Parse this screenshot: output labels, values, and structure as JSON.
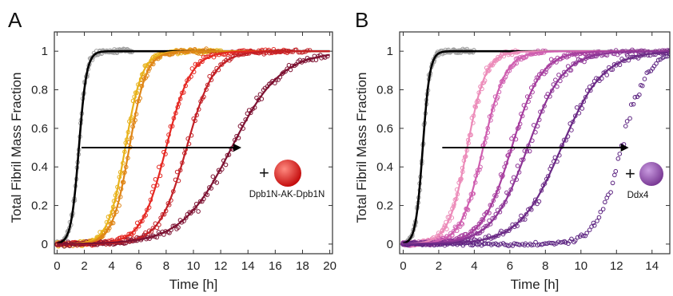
{
  "chart_data": [
    {
      "panel_label": "A",
      "type": "scatter",
      "xlabel": "Time [h]",
      "ylabel": "Total Fibril Mass Fraction",
      "xlim": [
        -0.2,
        20.2
      ],
      "ylim": [
        -0.05,
        1.1
      ],
      "xticks": [
        0,
        2,
        4,
        6,
        8,
        10,
        12,
        14,
        16,
        18,
        20
      ],
      "yticks": [
        0,
        0.2,
        0.4,
        0.6,
        0.8,
        1
      ],
      "annotation": "Dpb1N-AK-Dpb1N",
      "plus": "+",
      "bead_color": "#e0201b",
      "arrow": {
        "x1": 1.8,
        "x2": 13.4,
        "y": 0.5
      },
      "series": [
        {
          "color": "#000000",
          "t_half": 1.6,
          "k": 3.5,
          "x_start": 0.0,
          "x_end": 5.0,
          "fit_end": 20.0,
          "points": 0
        },
        {
          "color": "#9e9e9e",
          "t_half": 1.6,
          "k": 3.5,
          "x_start": 0.0,
          "x_end": 5.5,
          "fit_end": 0,
          "points": 110
        },
        {
          "color": "#e8b21a",
          "t_half": 5.0,
          "k": 1.6,
          "x_start": 0.0,
          "x_end": 12.0,
          "fit_end": 20.0,
          "points": 130
        },
        {
          "color": "#df8516",
          "t_half": 5.3,
          "k": 1.6,
          "x_start": 0.0,
          "x_end": 11.5,
          "fit_end": 20.0,
          "points": 130
        },
        {
          "color": "#e52822",
          "t_half": 8.0,
          "k": 1.1,
          "x_start": 0.0,
          "x_end": 17.0,
          "fit_end": 20.0,
          "points": 140
        },
        {
          "color": "#c22026",
          "t_half": 9.5,
          "k": 1.0,
          "x_start": 0.0,
          "x_end": 18.5,
          "fit_end": 20.0,
          "points": 140
        },
        {
          "color": "#7d1232",
          "t_half": 12.8,
          "k": 0.55,
          "x_start": 0.0,
          "x_end": 19.8,
          "fit_end": 20.0,
          "points": 150
        }
      ]
    },
    {
      "panel_label": "B",
      "type": "scatter",
      "xlabel": "Time [h]",
      "ylabel": "Total Fibril Mass Fraction",
      "xlim": [
        -0.2,
        15.0
      ],
      "ylim": [
        -0.05,
        1.1
      ],
      "xticks": [
        0,
        2,
        4,
        6,
        8,
        10,
        12,
        14
      ],
      "yticks": [
        0,
        0.2,
        0.4,
        0.6,
        0.8,
        1
      ],
      "annotation": "Ddx4",
      "plus": "+",
      "bead_color": "#8e4ea6",
      "arrow": {
        "x1": 2.2,
        "x2": 12.6,
        "y": 0.5
      },
      "series": [
        {
          "color": "#000000",
          "t_half": 1.1,
          "k": 5.0,
          "x_start": 0.0,
          "x_end": 4.0,
          "fit_end": 15.0,
          "points": 0
        },
        {
          "color": "#9e9e9e",
          "t_half": 1.1,
          "k": 5.0,
          "x_start": 0.0,
          "x_end": 4.0,
          "fit_end": 0,
          "points": 110
        },
        {
          "color": "#ec8bb9",
          "t_half": 3.6,
          "k": 1.9,
          "x_start": 0.0,
          "x_end": 6.5,
          "fit_end": 15.0,
          "points": 130
        },
        {
          "color": "#cf5fb0",
          "t_half": 4.5,
          "k": 1.6,
          "x_start": 0.0,
          "x_end": 8.0,
          "fit_end": 15.0,
          "points": 130
        },
        {
          "color": "#a73f9f",
          "t_half": 6.1,
          "k": 1.2,
          "x_start": 0.0,
          "x_end": 11.0,
          "fit_end": 15.0,
          "points": 140
        },
        {
          "color": "#8d3596",
          "t_half": 7.0,
          "k": 1.0,
          "x_start": 0.0,
          "x_end": 15.0,
          "fit_end": 15.0,
          "points": 150
        },
        {
          "color": "#6b2a86",
          "t_half": 8.9,
          "k": 0.85,
          "x_start": 0.0,
          "x_end": 15.0,
          "fit_end": 15.0,
          "points": 150
        },
        {
          "color": "#5b2280",
          "t_half": 12.3,
          "k": 1.4,
          "x_start": 0.0,
          "x_end": 15.0,
          "fit_end": 0,
          "points": 140
        }
      ]
    }
  ]
}
